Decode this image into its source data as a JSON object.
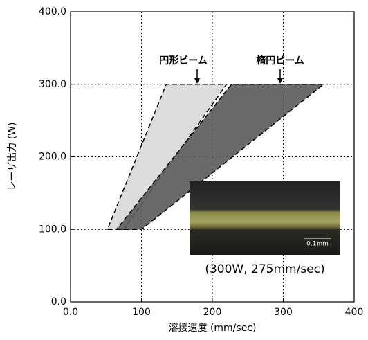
{
  "chart_data": {
    "type": "polygon",
    "xlabel": "溶接速度 (mm/sec)",
    "ylabel": "レーザ出力 (W)",
    "xlim": [
      0,
      400
    ],
    "ylim": [
      0,
      400
    ],
    "xticks": [
      {
        "value": 0,
        "label": "0.0"
      },
      100,
      200,
      300,
      400
    ],
    "yticks": [
      {
        "value": 0,
        "label": "0.0"
      },
      {
        "value": 100,
        "label": "100.0"
      },
      {
        "value": 200,
        "label": "200.0"
      },
      {
        "value": 300,
        "label": "300.0"
      },
      {
        "value": 400,
        "label": "400.0"
      }
    ],
    "grid": true,
    "series": [
      {
        "name": "円形ビーム",
        "color": "#dcdcdc",
        "x": [
          52,
          75,
          220,
          135
        ],
        "values": [
          100,
          100,
          300,
          300
        ]
      },
      {
        "name": "楕円ビーム",
        "color": "#5a5a5a",
        "x": [
          65,
          100,
          357,
          227
        ],
        "values": [
          100,
          100,
          300,
          300
        ]
      }
    ],
    "inset_scale": "0.1mm",
    "inset_caption": "(300W, 275mm/sec)"
  }
}
